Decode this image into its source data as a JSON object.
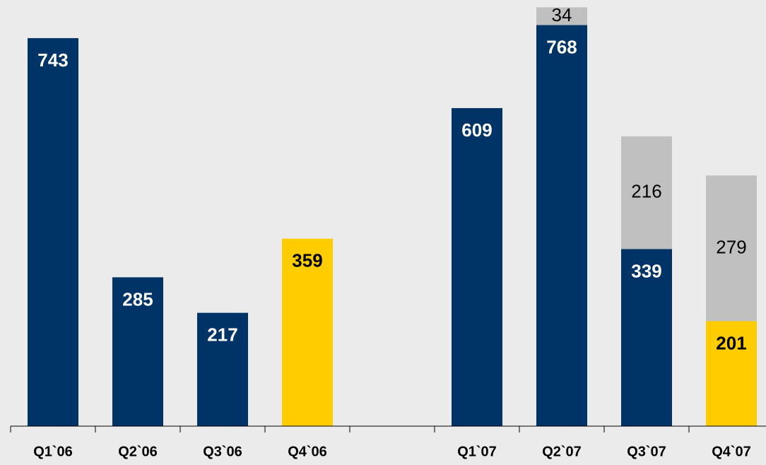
{
  "chart_data": {
    "type": "stacked_bar",
    "categories": [
      "Q1`06",
      "Q2`06",
      "Q3`06",
      "Q4`06",
      null,
      "Q1`07",
      "Q2`07",
      "Q3`07",
      "Q4`07"
    ],
    "series": [
      {
        "colors": [
          "#003366",
          "#003366",
          "#003366",
          "#ffcc00",
          null,
          "#003366",
          "#003366",
          "#003366",
          "#ffcc00"
        ],
        "values": [
          743,
          285,
          217,
          359,
          null,
          609,
          768,
          339,
          201
        ]
      },
      {
        "color": "#c0c0c0",
        "values": [
          null,
          null,
          null,
          null,
          null,
          null,
          34,
          216,
          279
        ]
      }
    ],
    "ylim": [
      0,
      816
    ]
  }
}
